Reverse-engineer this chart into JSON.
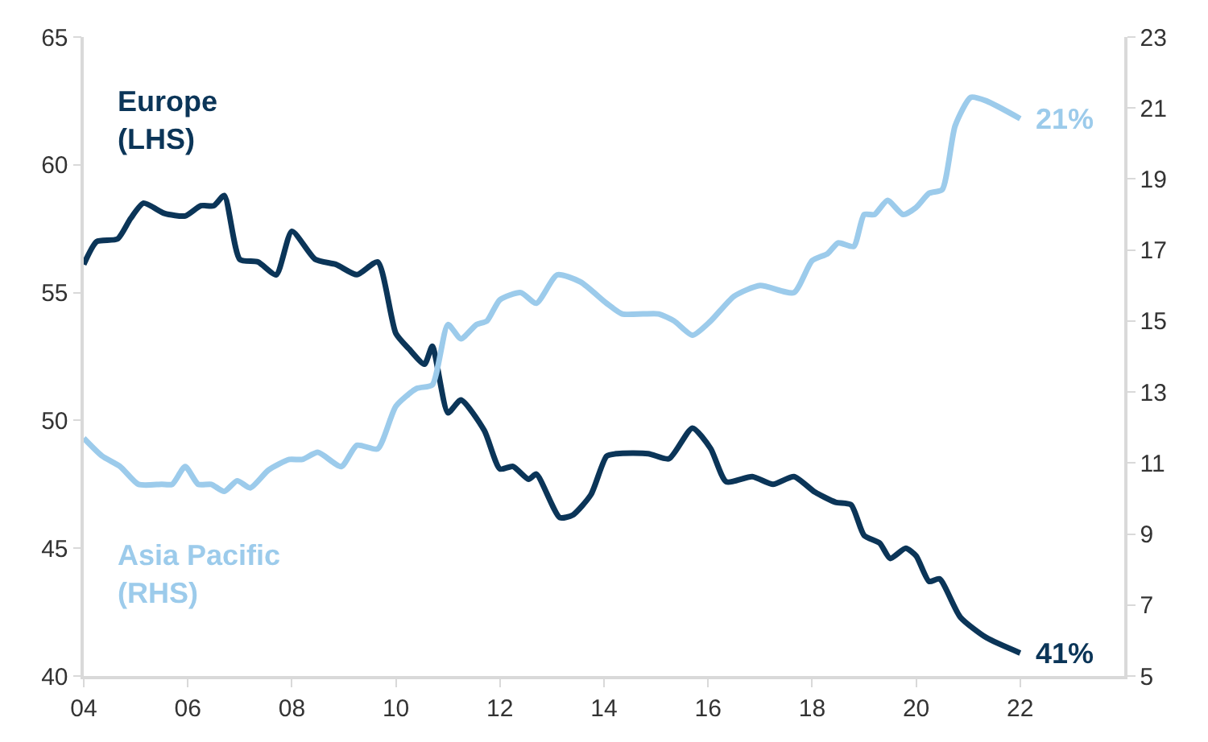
{
  "chart_data": {
    "type": "line",
    "xlim": [
      2004,
      2024
    ],
    "ylim": [
      40,
      65
    ],
    "y2lim": [
      5,
      23
    ],
    "xticks": [
      {
        "value": 2004,
        "label": "04"
      },
      {
        "value": 2006,
        "label": "06"
      },
      {
        "value": 2008,
        "label": "08"
      },
      {
        "value": 2010,
        "label": "10"
      },
      {
        "value": 2012,
        "label": "12"
      },
      {
        "value": 2014,
        "label": "14"
      },
      {
        "value": 2016,
        "label": "16"
      },
      {
        "value": 2018,
        "label": "18"
      },
      {
        "value": 2020,
        "label": "20"
      },
      {
        "value": 2022,
        "label": "22"
      }
    ],
    "yticks": [
      40,
      45,
      50,
      55,
      60,
      65
    ],
    "y2ticks": [
      5,
      7,
      9,
      11,
      13,
      15,
      17,
      19,
      21,
      23
    ],
    "grid": false,
    "legend": false,
    "marker": "none",
    "line_style": "solid",
    "series": [
      {
        "name": "Europe (LHS)",
        "color": "#0b3558",
        "axis": "y",
        "x": [
          2004.0,
          2004.25,
          2004.65,
          2004.9,
          2005.15,
          2005.55,
          2005.95,
          2006.25,
          2006.5,
          2006.7,
          2007.0,
          2007.35,
          2007.7,
          2008.0,
          2008.45,
          2008.85,
          2009.25,
          2009.65,
          2010.0,
          2010.25,
          2010.55,
          2010.7,
          2011.0,
          2011.25,
          2011.7,
          2012.0,
          2012.25,
          2012.55,
          2012.7,
          2013.15,
          2013.4,
          2013.75,
          2014.05,
          2014.25,
          2014.85,
          2015.25,
          2015.7,
          2016.05,
          2016.35,
          2016.85,
          2017.25,
          2017.65,
          2018.05,
          2018.45,
          2018.75,
          2019.0,
          2019.3,
          2019.5,
          2019.8,
          2020.0,
          2020.25,
          2020.45,
          2020.85,
          2021.35,
          2022.0
        ],
        "values": [
          56.1,
          57.0,
          57.1,
          57.9,
          58.5,
          58.1,
          58.0,
          58.4,
          58.4,
          58.8,
          56.3,
          56.2,
          55.7,
          57.4,
          56.3,
          56.1,
          55.7,
          56.2,
          53.4,
          52.8,
          52.2,
          52.9,
          50.3,
          50.8,
          49.6,
          48.1,
          48.2,
          47.7,
          47.9,
          46.2,
          46.3,
          47.1,
          48.6,
          48.7,
          48.7,
          48.5,
          49.7,
          48.9,
          47.6,
          47.8,
          47.5,
          47.8,
          47.2,
          46.8,
          46.7,
          45.5,
          45.2,
          44.6,
          45.0,
          44.7,
          43.7,
          43.8,
          42.3,
          41.5,
          40.9
        ],
        "value_labels": [
          null,
          null,
          null,
          null,
          null,
          null,
          null,
          null,
          null,
          null,
          null,
          null,
          null,
          null,
          null,
          null,
          null,
          null,
          null,
          null,
          null,
          null,
          null,
          null,
          null,
          null,
          null,
          null,
          null,
          null,
          null,
          null,
          null,
          null,
          null,
          null,
          null,
          null,
          null,
          null,
          null,
          null,
          null,
          null,
          null,
          null,
          null,
          null,
          null,
          null,
          null,
          null,
          null,
          null,
          "41%"
        ]
      },
      {
        "name": "Asia Pacific (RHS)",
        "color": "#9ccbeb",
        "axis": "y2",
        "x": [
          2004.0,
          2004.35,
          2004.7,
          2005.05,
          2005.5,
          2005.7,
          2005.95,
          2006.2,
          2006.45,
          2006.7,
          2006.95,
          2007.2,
          2007.55,
          2007.95,
          2008.2,
          2008.5,
          2008.95,
          2009.25,
          2009.65,
          2010.0,
          2010.4,
          2010.7,
          2011.0,
          2011.25,
          2011.55,
          2011.75,
          2012.0,
          2012.4,
          2012.7,
          2013.1,
          2013.55,
          2014.05,
          2014.35,
          2014.75,
          2015.05,
          2015.35,
          2015.7,
          2016.05,
          2016.5,
          2017.0,
          2017.65,
          2018.0,
          2018.3,
          2018.5,
          2018.8,
          2019.0,
          2019.2,
          2019.45,
          2019.75,
          2020.0,
          2020.25,
          2020.5,
          2020.75,
          2021.05,
          2021.35,
          2022.0
        ],
        "values": [
          11.7,
          11.2,
          10.9,
          10.4,
          10.4,
          10.4,
          10.9,
          10.4,
          10.4,
          10.2,
          10.5,
          10.3,
          10.8,
          11.1,
          11.1,
          11.3,
          10.9,
          11.5,
          11.4,
          12.6,
          13.1,
          13.2,
          14.9,
          14.5,
          14.9,
          15.0,
          15.6,
          15.8,
          15.5,
          16.3,
          16.1,
          15.5,
          15.2,
          15.2,
          15.2,
          15.0,
          14.6,
          15.0,
          15.7,
          16.0,
          15.8,
          16.7,
          16.9,
          17.2,
          17.1,
          18.0,
          18.0,
          18.4,
          18.0,
          18.2,
          18.6,
          18.7,
          20.5,
          21.3,
          21.2,
          20.7
        ],
        "value_labels": [
          null,
          null,
          null,
          null,
          null,
          null,
          null,
          null,
          null,
          null,
          null,
          null,
          null,
          null,
          null,
          null,
          null,
          null,
          null,
          null,
          null,
          null,
          null,
          null,
          null,
          null,
          null,
          null,
          null,
          null,
          null,
          null,
          null,
          null,
          null,
          null,
          null,
          null,
          null,
          null,
          null,
          null,
          null,
          null,
          null,
          null,
          null,
          null,
          null,
          null,
          null,
          null,
          null,
          null,
          null,
          "21%"
        ]
      }
    ]
  }
}
